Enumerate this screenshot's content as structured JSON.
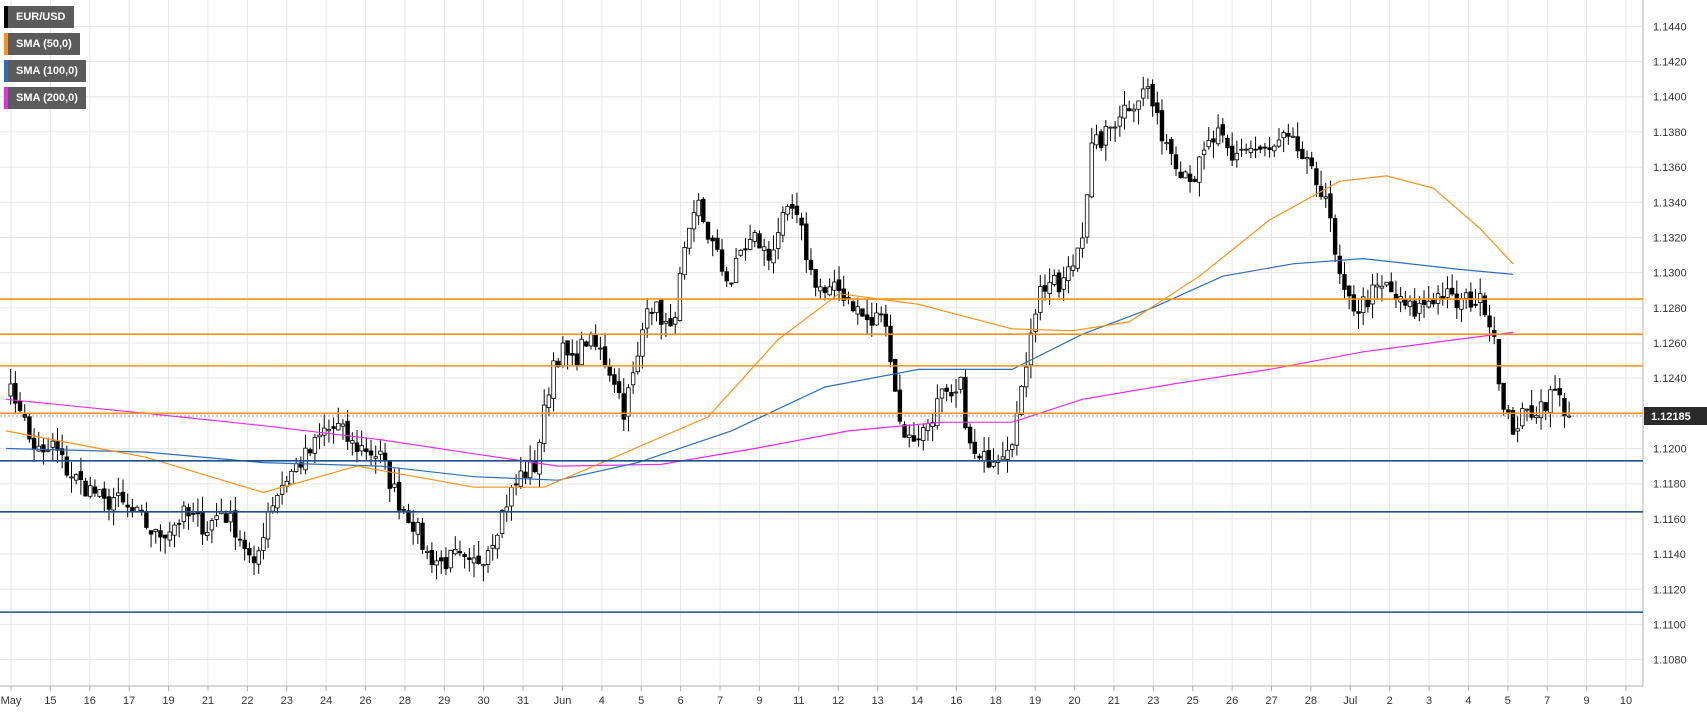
{
  "colors": {
    "background": "#ffffff",
    "grid": "#e6e6e6",
    "axis": "#b0b0b0",
    "candle_up_fill": "#ffffff",
    "candle_down_fill": "#000000",
    "candle_wick": "#000000",
    "sma50": "#f7931a",
    "sma100": "#2c6fb7",
    "sma200": "#e62ee6",
    "resistance": "#f7931a",
    "support": "#1f4e8c",
    "price_tag": "#2b2b2b"
  },
  "legend": [
    {
      "label": "EUR/USD",
      "color": "#000000"
    },
    {
      "label": "SMA (50,0)",
      "color": "#f7931a"
    },
    {
      "label": "SMA (100,0)",
      "color": "#2c6fb7"
    },
    {
      "label": "SMA (200,0)",
      "color": "#e62ee6"
    }
  ],
  "chart_data": {
    "type": "candlestick",
    "symbol": "EUR/USD",
    "ylim": [
      1.1065,
      1.1455
    ],
    "y_ticks": [
      "1.1080",
      "1.1100",
      "1.1120",
      "1.1140",
      "1.1160",
      "1.1180",
      "1.1200",
      "1.1220",
      "1.1240",
      "1.1260",
      "1.1280",
      "1.1300",
      "1.1320",
      "1.1340",
      "1.1360",
      "1.1380",
      "1.1400",
      "1.1420",
      "1.1440"
    ],
    "x_ticks": [
      "May",
      "15",
      "16",
      "17",
      "19",
      "21",
      "22",
      "23",
      "24",
      "26",
      "28",
      "29",
      "30",
      "31",
      "Jun",
      "4",
      "5",
      "6",
      "7",
      "9",
      "11",
      "12",
      "13",
      "14",
      "16",
      "18",
      "19",
      "20",
      "21",
      "23",
      "25",
      "26",
      "27",
      "28",
      "Jul",
      "2",
      "3",
      "4",
      "5",
      "7",
      "9",
      "10"
    ],
    "current_price": "1.12185",
    "current_price_value": 1.12185,
    "resistance_levels": [
      1.1285,
      1.1265,
      1.1247,
      1.122
    ],
    "support_levels": [
      1.1193,
      1.1164,
      1.1107
    ],
    "price_path": [
      [
        0,
        1.1235
      ],
      [
        3,
        1.1225
      ],
      [
        5,
        1.1205
      ],
      [
        8,
        1.1195
      ],
      [
        10,
        1.1202
      ],
      [
        13,
        1.1188
      ],
      [
        16,
        1.118
      ],
      [
        19,
        1.1175
      ],
      [
        21,
        1.1168
      ],
      [
        23,
        1.1172
      ],
      [
        26,
        1.1165
      ],
      [
        29,
        1.116
      ],
      [
        32,
        1.115
      ],
      [
        35,
        1.1155
      ],
      [
        38,
        1.1162
      ],
      [
        40,
        1.116
      ],
      [
        43,
        1.1155
      ],
      [
        46,
        1.1165
      ],
      [
        49,
        1.1155
      ],
      [
        51,
        1.1145
      ],
      [
        53,
        1.113
      ],
      [
        56,
        1.1165
      ],
      [
        59,
        1.118
      ],
      [
        62,
        1.119
      ],
      [
        65,
        1.1198
      ],
      [
        68,
        1.121
      ],
      [
        71,
        1.1212
      ],
      [
        74,
        1.1202
      ],
      [
        77,
        1.12
      ],
      [
        80,
        1.1195
      ],
      [
        82,
        1.1182
      ],
      [
        84,
        1.117
      ],
      [
        87,
        1.1158
      ],
      [
        90,
        1.114
      ],
      [
        93,
        1.1135
      ],
      [
        96,
        1.1138
      ],
      [
        99,
        1.1132
      ],
      [
        102,
        1.114
      ],
      [
        104,
        1.115
      ],
      [
        107,
        1.117
      ],
      [
        110,
        1.1185
      ],
      [
        113,
        1.119
      ],
      [
        115,
        1.122
      ],
      [
        117,
        1.125
      ],
      [
        119,
        1.1255
      ],
      [
        121,
        1.1248
      ],
      [
        124,
        1.1262
      ],
      [
        127,
        1.1255
      ],
      [
        130,
        1.124
      ],
      [
        132,
        1.1222
      ],
      [
        135,
        1.125
      ],
      [
        137,
        1.1285
      ],
      [
        140,
        1.1275
      ],
      [
        142,
        1.1265
      ],
      [
        145,
        1.131
      ],
      [
        148,
        1.1338
      ],
      [
        150,
        1.1322
      ],
      [
        153,
        1.1302
      ],
      [
        155,
        1.1295
      ],
      [
        157,
        1.1312
      ],
      [
        160,
        1.132
      ],
      [
        163,
        1.1308
      ],
      [
        165,
        1.1325
      ],
      [
        168,
        1.1335
      ],
      [
        170,
        1.1322
      ],
      [
        172,
        1.13
      ],
      [
        175,
        1.1288
      ],
      [
        178,
        1.129
      ],
      [
        180,
        1.1286
      ],
      [
        183,
        1.1275
      ],
      [
        185,
        1.127
      ],
      [
        187,
        1.1278
      ],
      [
        189,
        1.1255
      ],
      [
        191,
        1.1215
      ],
      [
        193,
        1.1205
      ],
      [
        196,
        1.121
      ],
      [
        198,
        1.122
      ],
      [
        200,
        1.123
      ],
      [
        202,
        1.1225
      ],
      [
        204,
        1.1235
      ],
      [
        206,
        1.12
      ],
      [
        208,
        1.1192
      ],
      [
        210,
        1.1195
      ],
      [
        213,
        1.12
      ],
      [
        215,
        1.1208
      ],
      [
        217,
        1.123
      ],
      [
        219,
        1.127
      ],
      [
        221,
        1.129
      ],
      [
        223,
        1.1295
      ],
      [
        225,
        1.129
      ],
      [
        228,
        1.1305
      ],
      [
        230,
        1.1325
      ],
      [
        232,
        1.137
      ],
      [
        235,
        1.1378
      ],
      [
        238,
        1.1392
      ],
      [
        241,
        1.1398
      ],
      [
        244,
        1.1405
      ],
      [
        246,
        1.1385
      ],
      [
        249,
        1.137
      ],
      [
        251,
        1.136
      ],
      [
        254,
        1.1355
      ],
      [
        257,
        1.1372
      ],
      [
        259,
        1.1378
      ],
      [
        262,
        1.1362
      ],
      [
        264,
        1.1372
      ],
      [
        267,
        1.137
      ],
      [
        270,
        1.1368
      ],
      [
        273,
        1.1375
      ],
      [
        276,
        1.137
      ],
      [
        279,
        1.1355
      ],
      [
        282,
        1.1345
      ],
      [
        284,
        1.1308
      ],
      [
        286,
        1.1285
      ],
      [
        289,
        1.128
      ],
      [
        292,
        1.1288
      ],
      [
        295,
        1.1292
      ],
      [
        298,
        1.1282
      ],
      [
        301,
        1.1278
      ],
      [
        304,
        1.1285
      ],
      [
        307,
        1.1288
      ],
      [
        310,
        1.1282
      ],
      [
        313,
        1.1285
      ],
      [
        316,
        1.1282
      ],
      [
        318,
        1.1265
      ],
      [
        320,
        1.122
      ],
      [
        322,
        1.1212
      ],
      [
        325,
        1.122
      ],
      [
        328,
        1.1225
      ],
      [
        331,
        1.1232
      ],
      [
        334,
        1.12185
      ]
    ],
    "sma50": [
      [
        0,
        1.121
      ],
      [
        30,
        1.1195
      ],
      [
        55,
        1.1175
      ],
      [
        75,
        1.119
      ],
      [
        100,
        1.1178
      ],
      [
        115,
        1.1178
      ],
      [
        130,
        1.1195
      ],
      [
        150,
        1.1218
      ],
      [
        165,
        1.1262
      ],
      [
        178,
        1.1288
      ],
      [
        195,
        1.1282
      ],
      [
        215,
        1.1268
      ],
      [
        228,
        1.1267
      ],
      [
        240,
        1.1272
      ],
      [
        255,
        1.1298
      ],
      [
        270,
        1.133
      ],
      [
        285,
        1.1352
      ],
      [
        295,
        1.1355
      ],
      [
        305,
        1.1348
      ],
      [
        315,
        1.1325
      ],
      [
        322,
        1.1305
      ]
    ],
    "sma100": [
      [
        0,
        1.12
      ],
      [
        30,
        1.1198
      ],
      [
        55,
        1.1192
      ],
      [
        80,
        1.119
      ],
      [
        100,
        1.1184
      ],
      [
        118,
        1.1182
      ],
      [
        135,
        1.1192
      ],
      [
        155,
        1.121
      ],
      [
        175,
        1.1235
      ],
      [
        195,
        1.1245
      ],
      [
        215,
        1.1245
      ],
      [
        230,
        1.1265
      ],
      [
        245,
        1.128
      ],
      [
        260,
        1.1298
      ],
      [
        275,
        1.1305
      ],
      [
        290,
        1.1308
      ],
      [
        310,
        1.1302
      ],
      [
        322,
        1.1299
      ]
    ],
    "sma200": [
      [
        0,
        1.1228
      ],
      [
        30,
        1.122
      ],
      [
        55,
        1.1213
      ],
      [
        80,
        1.1205
      ],
      [
        100,
        1.1197
      ],
      [
        118,
        1.119
      ],
      [
        140,
        1.1191
      ],
      [
        160,
        1.12
      ],
      [
        180,
        1.121
      ],
      [
        200,
        1.1215
      ],
      [
        215,
        1.1215
      ],
      [
        230,
        1.1228
      ],
      [
        250,
        1.1237
      ],
      [
        270,
        1.1245
      ],
      [
        290,
        1.1255
      ],
      [
        310,
        1.1262
      ],
      [
        322,
        1.1266
      ]
    ]
  }
}
